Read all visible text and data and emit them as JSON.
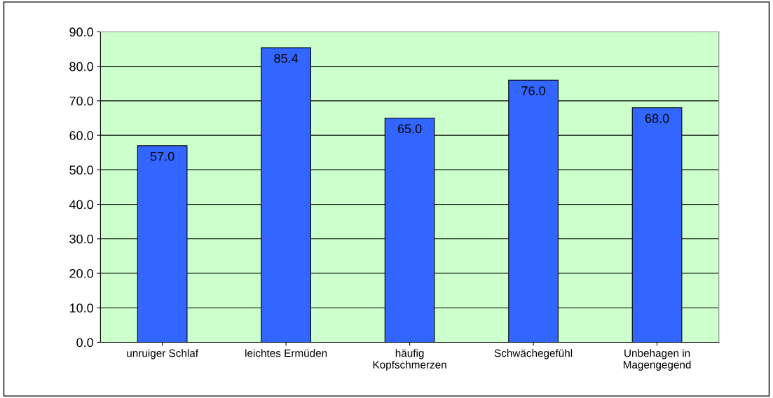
{
  "chart_data": {
    "type": "bar",
    "categories": [
      "unruiger Schlaf",
      "leichtes Ermüden",
      "häufig\nKopfschmerzen",
      "Schwächegefühl",
      "Unbehagen in\nMagengegend"
    ],
    "values": [
      57.0,
      85.4,
      65.0,
      76.0,
      68.0
    ],
    "value_labels": [
      "57.0",
      "85.4",
      "65.0",
      "76.0",
      "68.0"
    ],
    "color": "#3366ff",
    "ylim": [
      0,
      90
    ],
    "yticks": [
      {
        "value": 0,
        "label": "0.0"
      },
      {
        "value": 10,
        "label": "10.0"
      },
      {
        "value": 20,
        "label": "20.0"
      },
      {
        "value": 30,
        "label": "30.0"
      },
      {
        "value": 40,
        "label": "40.0"
      },
      {
        "value": 50,
        "label": "50.0"
      },
      {
        "value": 60,
        "label": "60.0"
      },
      {
        "value": 70,
        "label": "70.0"
      },
      {
        "value": 80,
        "label": "80.0"
      },
      {
        "value": 90,
        "label": "90.0"
      }
    ],
    "grid": "y",
    "legend": false
  }
}
